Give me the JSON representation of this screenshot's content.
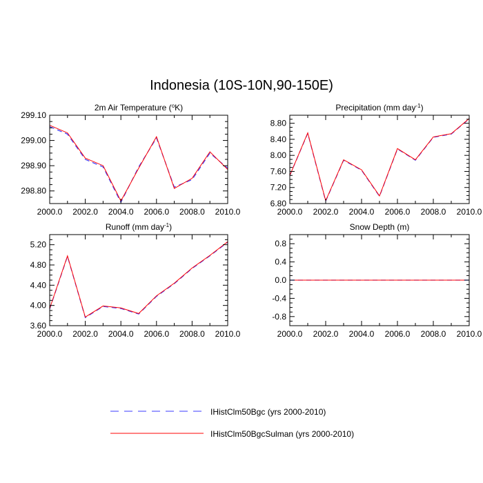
{
  "figure": {
    "title": "Indonesia (10S-10N,90-150E)"
  },
  "legend": [
    {
      "label": "IHistClm50Bgc (yrs 2000-2010)",
      "color": "#3a3aff",
      "style": "dashed"
    },
    {
      "label": "IHistClm50BgcSulman (yrs 2000-2010)",
      "color": "#ff0000",
      "style": "solid"
    }
  ],
  "chart_data": [
    {
      "type": "line",
      "title": "2m Air Temperature (°K)",
      "x": [
        2000,
        2001,
        2002,
        2003,
        2004,
        2005,
        2006,
        2007,
        2008,
        2009,
        2010
      ],
      "xlim": [
        2000,
        2010
      ],
      "x_ticks": [
        "2000.0",
        "2002.0",
        "2004.0",
        "2006.0",
        "2008.0",
        "2010.0"
      ],
      "ylim": [
        298.75,
        299.1
      ],
      "y_ticks": [
        "298.80",
        "298.90",
        "299.00",
        "299.10"
      ],
      "series": [
        {
          "name": "IHistClm50Bgc (yrs 2000-2010)",
          "values": [
            299.055,
            299.025,
            298.925,
            298.895,
            298.755,
            298.895,
            299.01,
            298.815,
            298.845,
            298.95,
            298.89
          ]
        },
        {
          "name": "IHistClm50BgcSulman (yrs 2000-2010)",
          "values": [
            299.06,
            299.03,
            298.93,
            298.9,
            298.76,
            298.89,
            299.015,
            298.81,
            298.85,
            298.955,
            298.885
          ]
        }
      ]
    },
    {
      "type": "line",
      "title": "Precipitation (mm day⁻¹)",
      "x": [
        2000,
        2001,
        2002,
        2003,
        2004,
        2005,
        2006,
        2007,
        2008,
        2009,
        2010
      ],
      "xlim": [
        2000,
        2010
      ],
      "x_ticks": [
        "2000.0",
        "2002.0",
        "2004.0",
        "2006.0",
        "2008.0",
        "2010.0"
      ],
      "ylim": [
        6.8,
        9.0
      ],
      "y_ticks": [
        "6.80",
        "7.20",
        "7.60",
        "8.00",
        "8.40",
        "8.80"
      ],
      "series": [
        {
          "name": "IHistClm50Bgc (yrs 2000-2010)",
          "values": [
            7.5,
            8.55,
            6.86,
            7.88,
            7.63,
            6.98,
            8.16,
            7.88,
            8.45,
            8.53,
            8.91
          ]
        },
        {
          "name": "IHistClm50BgcSulman (yrs 2000-2010)",
          "values": [
            7.5,
            8.56,
            6.87,
            7.89,
            7.64,
            6.99,
            8.17,
            7.89,
            8.46,
            8.54,
            8.92
          ]
        }
      ]
    },
    {
      "type": "line",
      "title": "Runoff (mm day⁻¹)",
      "x": [
        2000,
        2001,
        2002,
        2003,
        2004,
        2005,
        2006,
        2007,
        2008,
        2009,
        2010
      ],
      "xlim": [
        2000,
        2010
      ],
      "x_ticks": [
        "2000.0",
        "2002.0",
        "2004.0",
        "2006.0",
        "2008.0",
        "2010.0"
      ],
      "ylim": [
        3.6,
        5.4
      ],
      "y_ticks": [
        "3.60",
        "4.00",
        "4.40",
        "4.80",
        "5.20"
      ],
      "series": [
        {
          "name": "IHistClm50Bgc (yrs 2000-2010)",
          "values": [
            3.93,
            4.97,
            3.76,
            3.98,
            3.94,
            3.83,
            4.18,
            4.43,
            4.73,
            4.98,
            5.25
          ]
        },
        {
          "name": "IHistClm50BgcSulman (yrs 2000-2010)",
          "values": [
            3.94,
            4.98,
            3.77,
            3.99,
            3.95,
            3.84,
            4.19,
            4.44,
            4.74,
            4.99,
            5.26
          ]
        }
      ]
    },
    {
      "type": "line",
      "title": "Snow Depth (m)",
      "x": [
        2000,
        2001,
        2002,
        2003,
        2004,
        2005,
        2006,
        2007,
        2008,
        2009,
        2010
      ],
      "xlim": [
        2000,
        2010
      ],
      "x_ticks": [
        "2000.0",
        "2002.0",
        "2004.0",
        "2006.0",
        "2008.0",
        "2010.0"
      ],
      "ylim": [
        -1.0,
        1.0
      ],
      "y_ticks": [
        "-0.8",
        "-0.4",
        "0.0",
        "0.4",
        "0.8"
      ],
      "series": [
        {
          "name": "IHistClm50Bgc (yrs 2000-2010)",
          "values": [
            0,
            0,
            0,
            0,
            0,
            0,
            0,
            0,
            0,
            0,
            0
          ]
        },
        {
          "name": "IHistClm50BgcSulman (yrs 2000-2010)",
          "values": [
            0,
            0,
            0,
            0,
            0,
            0,
            0,
            0,
            0,
            0,
            0
          ]
        }
      ]
    }
  ]
}
